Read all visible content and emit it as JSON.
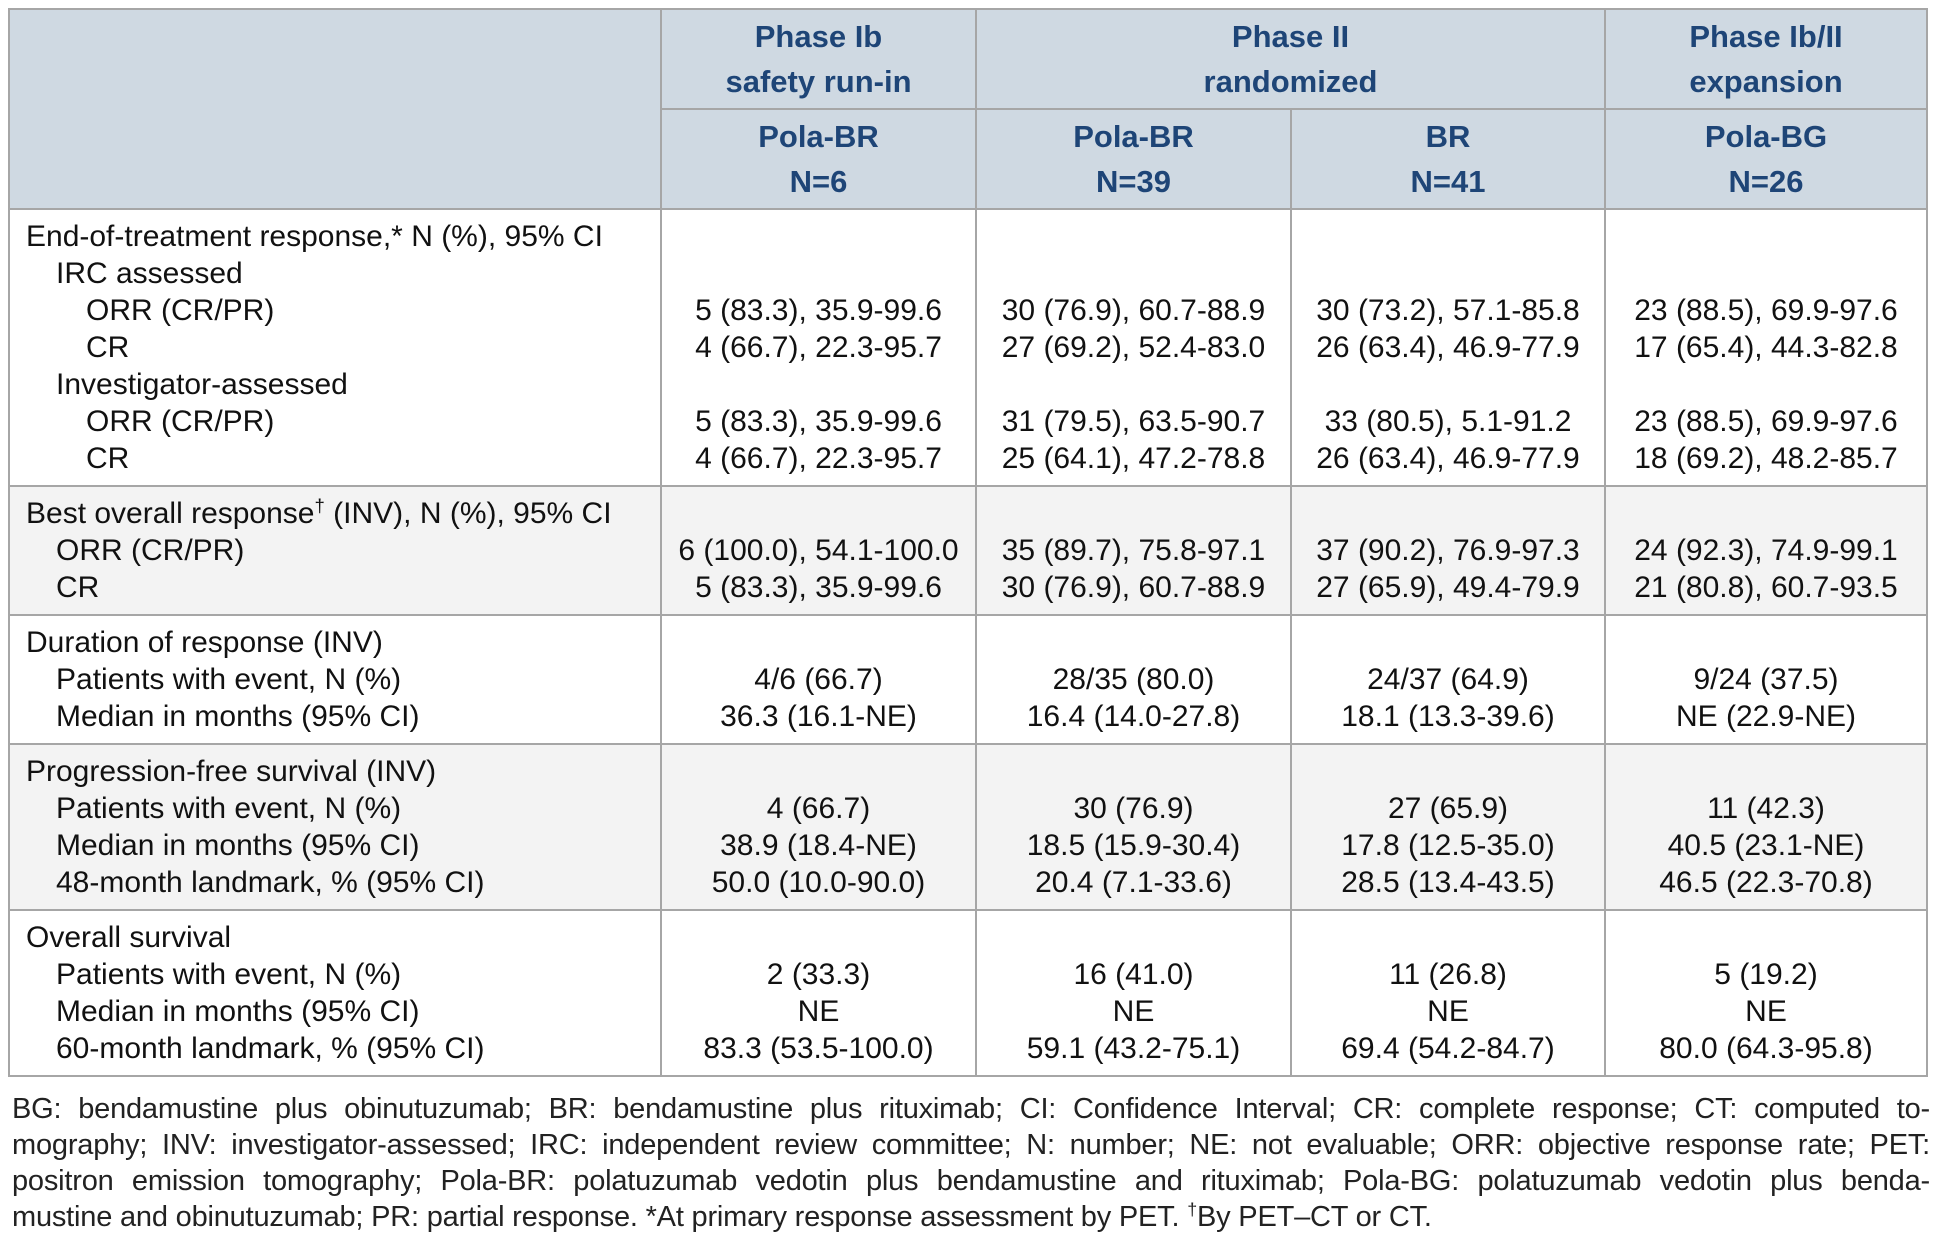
{
  "table": {
    "header": {
      "corner": "",
      "phase_groups": [
        {
          "line1": "Phase Ib",
          "line2": "safety run-in",
          "span": 1
        },
        {
          "line1": "Phase II",
          "line2": "randomized",
          "span": 2
        },
        {
          "line1": "Phase Ib/II",
          "line2": "expansion",
          "span": 1
        }
      ],
      "arms": [
        {
          "name": "Pola-BR",
          "n": "N=6"
        },
        {
          "name": "Pola-BR",
          "n": "N=39"
        },
        {
          "name": "BR",
          "n": "N=41"
        },
        {
          "name": "Pola-BG",
          "n": "N=26"
        }
      ]
    },
    "sections": [
      {
        "shaded": false,
        "rows": [
          {
            "label": "End-of-treatment response,* N (%), 95% CI",
            "indent": 0,
            "values": [
              "",
              "",
              "",
              ""
            ]
          },
          {
            "label": "IRC assessed",
            "indent": 1,
            "values": [
              "",
              "",
              "",
              ""
            ]
          },
          {
            "label": "ORR (CR/PR)",
            "indent": 2,
            "values": [
              "5 (83.3), 35.9-99.6",
              "30 (76.9), 60.7-88.9",
              "30 (73.2), 57.1-85.8",
              "23 (88.5), 69.9-97.6"
            ]
          },
          {
            "label": "CR",
            "indent": 2,
            "values": [
              "4 (66.7), 22.3-95.7",
              "27 (69.2), 52.4-83.0",
              "26 (63.4), 46.9-77.9",
              "17 (65.4), 44.3-82.8"
            ]
          },
          {
            "label": "Investigator-assessed",
            "indent": 1,
            "values": [
              "",
              "",
              "",
              ""
            ]
          },
          {
            "label": "ORR (CR/PR)",
            "indent": 2,
            "values": [
              "5 (83.3), 35.9-99.6",
              "31 (79.5), 63.5-90.7",
              "33 (80.5), 5.1-91.2",
              "23 (88.5), 69.9-97.6"
            ]
          },
          {
            "label": "CR",
            "indent": 2,
            "values": [
              "4 (66.7), 22.3-95.7",
              "25 (64.1), 47.2-78.8",
              "26 (63.4), 46.9-77.9",
              "18 (69.2), 48.2-85.7"
            ]
          }
        ]
      },
      {
        "shaded": true,
        "rows": [
          {
            "label": "Best overall response† (INV), N (%), 95% CI",
            "indent": 0,
            "values": [
              "",
              "",
              "",
              ""
            ]
          },
          {
            "label": "ORR (CR/PR)",
            "indent": 1,
            "values": [
              "6 (100.0), 54.1-100.0",
              "35 (89.7), 75.8-97.1",
              "37 (90.2), 76.9-97.3",
              "24 (92.3), 74.9-99.1"
            ]
          },
          {
            "label": "CR",
            "indent": 1,
            "values": [
              "5 (83.3), 35.9-99.6",
              "30 (76.9), 60.7-88.9",
              "27 (65.9), 49.4-79.9",
              "21 (80.8), 60.7-93.5"
            ]
          }
        ]
      },
      {
        "shaded": false,
        "rows": [
          {
            "label": "Duration of response (INV)",
            "indent": 0,
            "values": [
              "",
              "",
              "",
              ""
            ]
          },
          {
            "label": "Patients with event, N (%)",
            "indent": 1,
            "values": [
              "4/6 (66.7)",
              "28/35 (80.0)",
              "24/37 (64.9)",
              "9/24 (37.5)"
            ]
          },
          {
            "label": "Median in months (95% CI)",
            "indent": 1,
            "values": [
              "36.3 (16.1-NE)",
              "16.4 (14.0-27.8)",
              "18.1 (13.3-39.6)",
              "NE (22.9-NE)"
            ]
          }
        ]
      },
      {
        "shaded": true,
        "rows": [
          {
            "label": "Progression-free survival (INV)",
            "indent": 0,
            "values": [
              "",
              "",
              "",
              ""
            ]
          },
          {
            "label": "Patients with event, N (%)",
            "indent": 1,
            "values": [
              "4 (66.7)",
              "30 (76.9)",
              "27 (65.9)",
              "11 (42.3)"
            ]
          },
          {
            "label": "Median in months (95% CI)",
            "indent": 1,
            "values": [
              "38.9 (18.4-NE)",
              "18.5 (15.9-30.4)",
              "17.8 (12.5-35.0)",
              "40.5 (23.1-NE)"
            ]
          },
          {
            "label": "48-month landmark, % (95% CI)",
            "indent": 1,
            "values": [
              "50.0 (10.0-90.0)",
              "20.4 (7.1-33.6)",
              "28.5 (13.4-43.5)",
              "46.5 (22.3-70.8)"
            ]
          }
        ]
      },
      {
        "shaded": false,
        "rows": [
          {
            "label": "Overall survival",
            "indent": 0,
            "values": [
              "",
              "",
              "",
              ""
            ]
          },
          {
            "label": "Patients with event, N (%)",
            "indent": 1,
            "values": [
              "2 (33.3)",
              "16 (41.0)",
              "11 (26.8)",
              "5 (19.2)"
            ]
          },
          {
            "label": "Median in months (95% CI)",
            "indent": 1,
            "values": [
              "NE",
              "NE",
              "NE",
              "NE"
            ]
          },
          {
            "label": "60-month landmark, % (95% CI)",
            "indent": 1,
            "values": [
              "83.3 (53.5-100.0)",
              "59.1 (43.2-75.1)",
              "69.4 (54.2-84.7)",
              "80.0 (64.3-95.8)"
            ]
          }
        ]
      }
    ]
  },
  "footnote": {
    "lines": [
      "BG: bendamustine plus obinutuzumab; BR: bendamustine plus rituximab; CI: Confidence Interval; CR: complete response; CT: computed to-",
      "mography; INV: investigator-assessed; IRC: independent review committee; N: number; NE: not evaluable; ORR: objective response rate; PET:",
      "positron emission tomography; Pola-BR: polatuzumab vedotin plus bendamustine and rituximab; Pola-BG: polatuzumab vedotin plus benda-",
      "mustine and obinutuzumab; PR: partial response. *At primary response assessment by PET. †By PET–CT or CT."
    ]
  },
  "colors": {
    "header_bg": "#cfd9e2",
    "header_text": "#1e4577",
    "border": "#a6a6a6",
    "shaded_section_bg": "#f3f3f3",
    "body_text": "#111111"
  }
}
